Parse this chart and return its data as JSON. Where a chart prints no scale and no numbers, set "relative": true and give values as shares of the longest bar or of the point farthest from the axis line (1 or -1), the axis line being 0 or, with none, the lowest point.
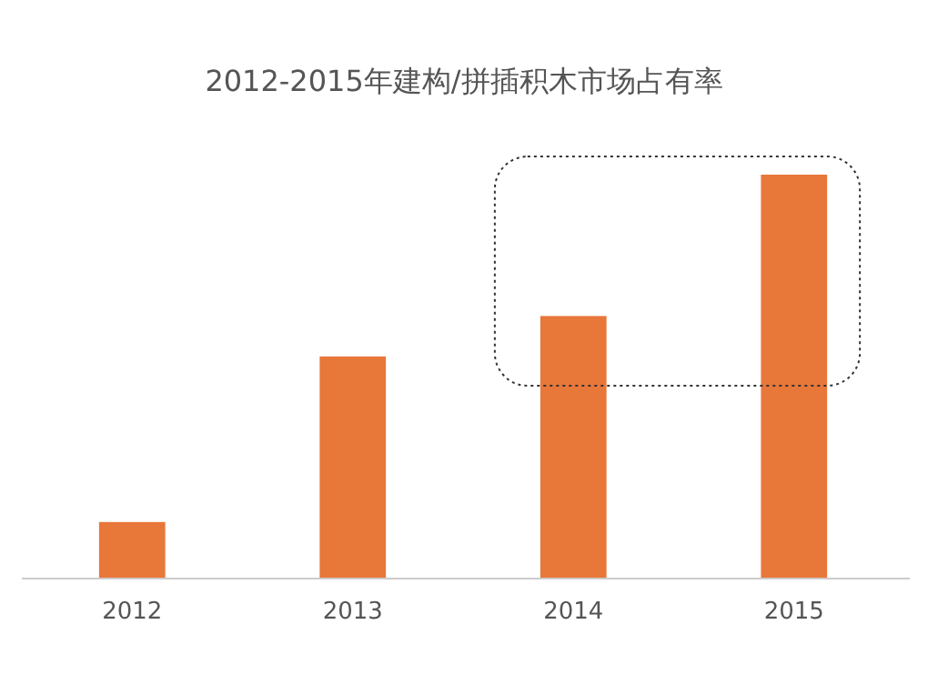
{
  "chart_data": {
    "type": "bar",
    "title": "2012-2015年建构/拼插积木市场占有率",
    "categories": [
      "2012",
      "2013",
      "2014",
      "2015"
    ],
    "values": [
      0.14,
      0.55,
      0.65,
      1
    ],
    "color": "#e8773a",
    "relative": true
  }
}
